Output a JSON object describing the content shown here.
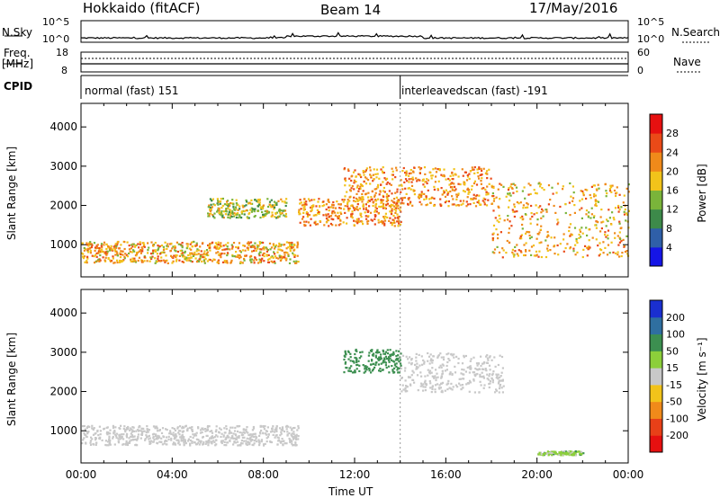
{
  "header": {
    "station": "Hokkaido (fitACF)",
    "beam": "Beam 14",
    "date": "17/May/2016"
  },
  "top_panel": {
    "nsky_label": "N.Sky",
    "nsearch_label": "N.Search",
    "noise_ticks_left": [
      "10^5",
      "10^0"
    ],
    "noise_ticks_right": [
      "10^5",
      "10^0"
    ],
    "freq_label": "Freq.",
    "freq_unit": "[MHz]",
    "freq_ticks": [
      "18",
      "8"
    ],
    "nave_label": "Nave",
    "nave_ticks": [
      "60",
      "0"
    ],
    "cpid_label": "CPID",
    "modes": [
      {
        "name": "normal (fast) 151",
        "start": "00:00",
        "end": "14:00"
      },
      {
        "name": "interleavedscan (fast) -191",
        "start": "14:00",
        "end": "24:00"
      }
    ]
  },
  "chart_data": [
    {
      "type": "heatmap",
      "panel": "power",
      "ylabel": "Slant Range [km]",
      "yticks": [
        1000,
        2000,
        3000,
        4000
      ],
      "ylim": [
        180,
        4600
      ],
      "xlim": [
        "00:00",
        "24:00"
      ],
      "colorbar": {
        "label": "Power [dB]",
        "ticks": [
          4,
          8,
          12,
          16,
          20,
          24,
          28
        ],
        "colors": [
          "#1515e6",
          "#2f5fa8",
          "#3d8a4a",
          "#7ab43a",
          "#f2c31a",
          "#f08a1a",
          "#ea4a18",
          "#e61010"
        ]
      },
      "echo_regions": [
        {
          "t0": 0.0,
          "t1": 9.5,
          "r0": 550,
          "r1": 1100,
          "db": 20
        },
        {
          "t0": 9.5,
          "t1": 14.0,
          "r0": 1500,
          "r1": 2200,
          "db": 22
        },
        {
          "t0": 11.5,
          "t1": 18.0,
          "r0": 2000,
          "r1": 3000,
          "db": 22
        },
        {
          "t0": 18.0,
          "t1": 24.0,
          "r0": 700,
          "r1": 2600,
          "db": 20
        },
        {
          "t0": 5.5,
          "t1": 9.0,
          "r0": 1700,
          "r1": 2200,
          "db": 16
        }
      ]
    },
    {
      "type": "heatmap",
      "panel": "velocity",
      "ylabel": "Slant Range [km]",
      "xlabel": "Time UT",
      "xticks": [
        "00:00",
        "04:00",
        "08:00",
        "12:00",
        "16:00",
        "20:00",
        "00:00"
      ],
      "yticks": [
        1000,
        2000,
        3000,
        4000
      ],
      "ylim": [
        180,
        4600
      ],
      "colorbar": {
        "label": "Velocity [m s⁻¹]",
        "ticks": [
          200,
          100,
          50,
          15,
          -15,
          -50,
          -100,
          -200
        ],
        "colors": [
          "#1a2fd0",
          "#2f6fa0",
          "#3c8f50",
          "#8ccf3a",
          "#c8c8c8",
          "#f2c31a",
          "#f08a1a",
          "#e84018",
          "#e61010"
        ]
      },
      "echo_regions": [
        {
          "t0": 0.0,
          "t1": 9.5,
          "r0": 650,
          "r1": 1150,
          "vel": 0
        },
        {
          "t0": 11.5,
          "t1": 14.0,
          "r0": 2500,
          "r1": 3100,
          "vel": 60
        },
        {
          "t0": 14.0,
          "t1": 18.5,
          "r0": 2000,
          "r1": 3000,
          "vel": 0
        },
        {
          "t0": 20.0,
          "t1": 22.0,
          "r0": 400,
          "r1": 500,
          "vel": 20
        }
      ]
    }
  ]
}
